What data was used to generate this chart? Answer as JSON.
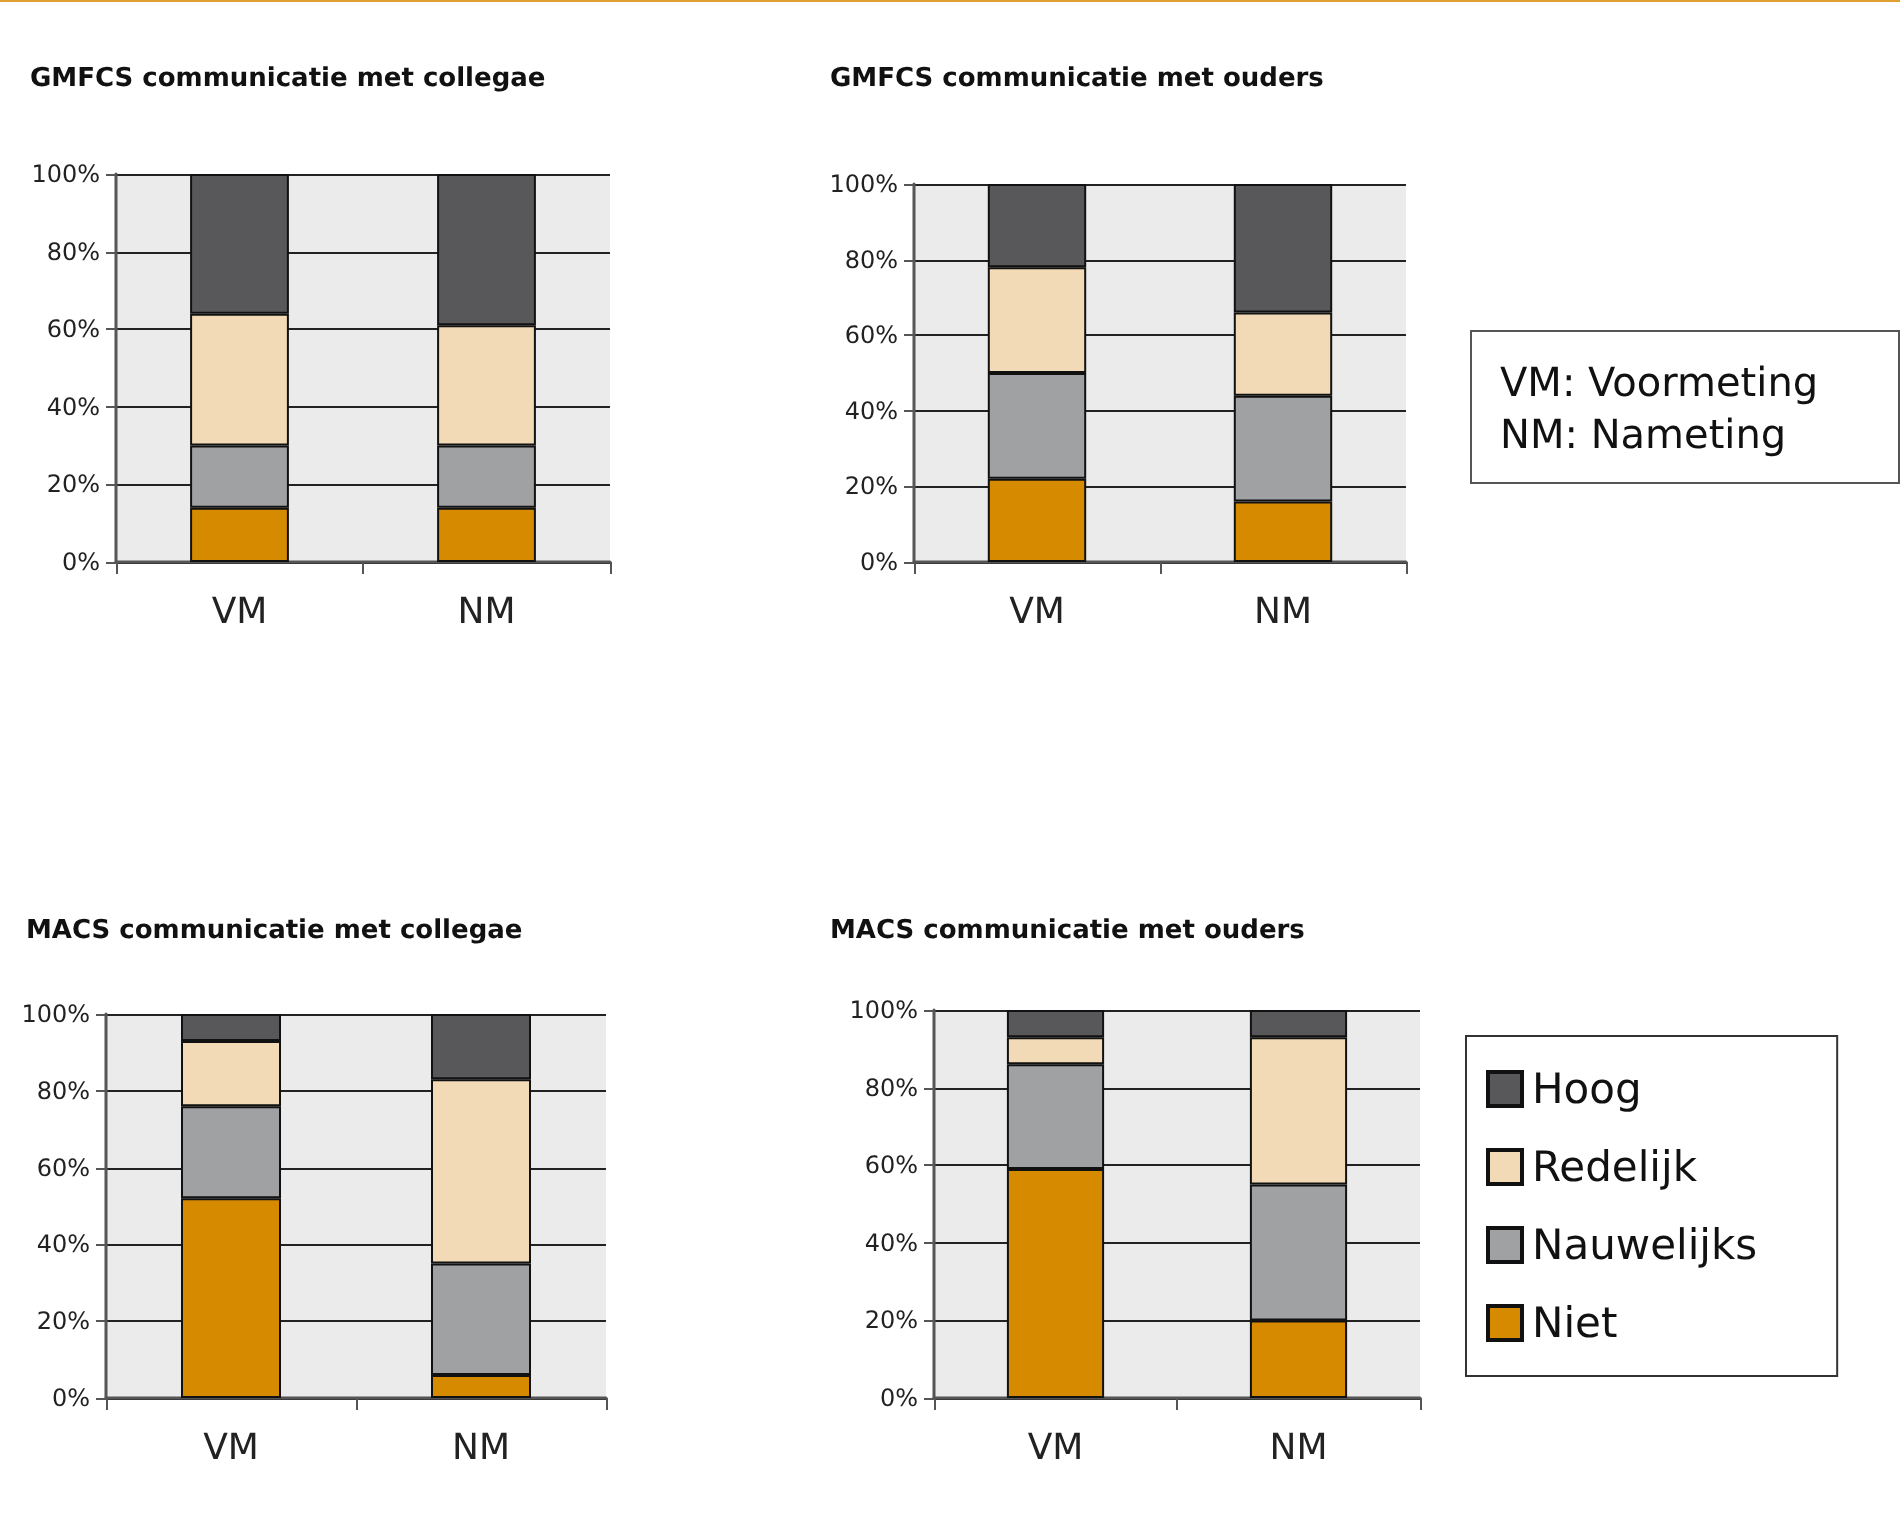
{
  "chart_data": [
    {
      "type": "bar",
      "title": "GMFCS communicatie met collegae",
      "categories": [
        "VM",
        "NM"
      ],
      "stacked": true,
      "ylim": [
        0,
        100
      ],
      "yticks": [
        {
          "value": 0,
          "label": "0%"
        },
        {
          "value": 20,
          "label": "20%"
        },
        {
          "value": 40,
          "label": "40%"
        },
        {
          "value": 60,
          "label": "60%"
        },
        {
          "value": 80,
          "label": "80%"
        },
        {
          "value": 100,
          "label": "100%"
        }
      ],
      "grid": "y",
      "legend": false,
      "series": [
        {
          "color": "#d68a00",
          "values": [
            14,
            14
          ]
        },
        {
          "color": "#a0a1a3",
          "values": [
            16,
            16
          ]
        },
        {
          "color": "#f2dab6",
          "values": [
            34,
            31
          ]
        },
        {
          "color": "#58585a",
          "values": [
            36,
            39
          ]
        }
      ]
    },
    {
      "type": "bar",
      "title": "GMFCS communicatie met ouders",
      "categories": [
        "VM",
        "NM"
      ],
      "stacked": true,
      "ylim": [
        0,
        100
      ],
      "yticks": [
        {
          "value": 0,
          "label": "0%"
        },
        {
          "value": 20,
          "label": "20%"
        },
        {
          "value": 40,
          "label": "40%"
        },
        {
          "value": 60,
          "label": "60%"
        },
        {
          "value": 80,
          "label": "80%"
        },
        {
          "value": 100,
          "label": "100%"
        }
      ],
      "grid": "y",
      "legend": false,
      "series": [
        {
          "color": "#d68a00",
          "values": [
            22,
            16
          ]
        },
        {
          "color": "#a0a1a3",
          "values": [
            28,
            28
          ]
        },
        {
          "color": "#f2dab6",
          "values": [
            28,
            22
          ]
        },
        {
          "color": "#58585a",
          "values": [
            22,
            34
          ]
        }
      ]
    },
    {
      "type": "other",
      "annotations": [
        "VM: Voormeting",
        "NM: Nameting"
      ]
    },
    {
      "type": "bar",
      "title": "MACS communicatie met collegae",
      "categories": [
        "VM",
        "NM"
      ],
      "stacked": true,
      "ylim": [
        0,
        100
      ],
      "yticks": [
        {
          "value": 0,
          "label": "0%"
        },
        {
          "value": 20,
          "label": "20%"
        },
        {
          "value": 40,
          "label": "40%"
        },
        {
          "value": 60,
          "label": "60%"
        },
        {
          "value": 80,
          "label": "80%"
        },
        {
          "value": 100,
          "label": "100%"
        }
      ],
      "grid": "y",
      "legend": false,
      "series": [
        {
          "color": "#d68a00",
          "values": [
            52,
            6
          ]
        },
        {
          "color": "#a0a1a3",
          "values": [
            24,
            29
          ]
        },
        {
          "color": "#f2dab6",
          "values": [
            17,
            48
          ]
        },
        {
          "color": "#58585a",
          "values": [
            7,
            17
          ]
        }
      ]
    },
    {
      "type": "bar",
      "title": "MACS communicatie met ouders",
      "categories": [
        "VM",
        "NM"
      ],
      "stacked": true,
      "ylim": [
        0,
        100
      ],
      "yticks": [
        {
          "value": 0,
          "label": "0%"
        },
        {
          "value": 20,
          "label": "20%"
        },
        {
          "value": 40,
          "label": "40%"
        },
        {
          "value": 60,
          "label": "60%"
        },
        {
          "value": 80,
          "label": "80%"
        },
        {
          "value": 100,
          "label": "100%"
        }
      ],
      "grid": "y",
      "legend": "right",
      "series": [
        {
          "name": "Niet",
          "color": "#d68a00",
          "values": [
            59,
            20
          ]
        },
        {
          "name": "Nauwelijks",
          "color": "#a0a1a3",
          "values": [
            27,
            35
          ]
        },
        {
          "name": "Redelijk",
          "color": "#f2dab6",
          "values": [
            7,
            38
          ]
        },
        {
          "name": "Hoog",
          "color": "#58585a",
          "values": [
            7,
            7
          ]
        }
      ]
    }
  ]
}
